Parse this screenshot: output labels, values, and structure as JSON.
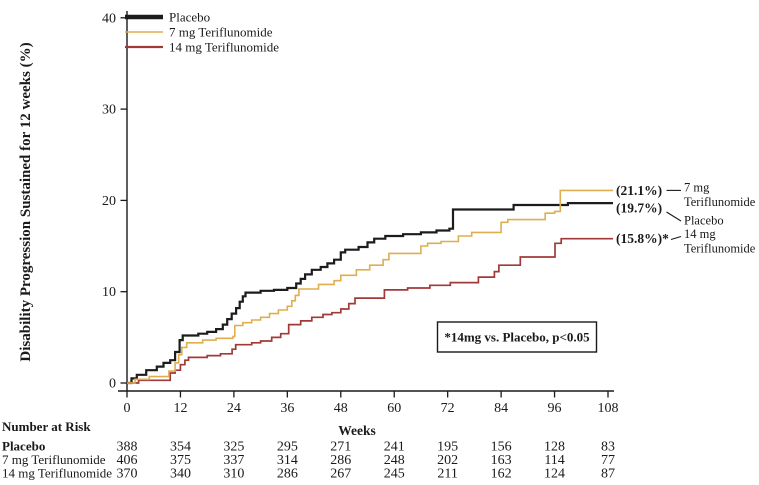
{
  "chart_data": {
    "type": "line",
    "subtype": "kaplan-meier-step",
    "title": "",
    "xlabel": "Weeks",
    "ylabel": "Disability Progression Sustained for 12 weeks (%)",
    "xlim": [
      0,
      108
    ],
    "ylim": [
      0,
      40
    ],
    "x_ticks": [
      0,
      12,
      24,
      36,
      48,
      60,
      72,
      84,
      96,
      108
    ],
    "y_ticks": [
      0,
      10,
      20,
      30,
      40
    ],
    "grid": false,
    "legend_position": "top-left",
    "annotation": "*14mg vs. Placebo, p<0.05",
    "axis_color": "#1a1a1a",
    "series": [
      {
        "name": "Placebo",
        "color": "#1c1c1c",
        "final_pct": 19.7,
        "final_label": "(19.7%)",
        "steps": [
          [
            0,
            0
          ],
          [
            1,
            0.5
          ],
          [
            2.2,
            0.9
          ],
          [
            4.3,
            1.4
          ],
          [
            6.7,
            1.8
          ],
          [
            8.2,
            2.2
          ],
          [
            9.7,
            2.5
          ],
          [
            10.8,
            3.4
          ],
          [
            11.8,
            4.7
          ],
          [
            12.5,
            5.2
          ],
          [
            16,
            5.4
          ],
          [
            18,
            5.6
          ],
          [
            20,
            5.9
          ],
          [
            21.5,
            6.4
          ],
          [
            22.5,
            7.0
          ],
          [
            23.5,
            7.6
          ],
          [
            24.5,
            8.2
          ],
          [
            25.3,
            8.9
          ],
          [
            26,
            9.5
          ],
          [
            26.6,
            9.9
          ],
          [
            30,
            10.1
          ],
          [
            33,
            10.2
          ],
          [
            36,
            10.4
          ],
          [
            38,
            10.9
          ],
          [
            39,
            11.4
          ],
          [
            40,
            11.9
          ],
          [
            41.5,
            12.4
          ],
          [
            43.5,
            12.7
          ],
          [
            45,
            13.1
          ],
          [
            46.5,
            13.5
          ],
          [
            48,
            14.3
          ],
          [
            49,
            14.6
          ],
          [
            52,
            14.9
          ],
          [
            54,
            15.4
          ],
          [
            55.5,
            15.8
          ],
          [
            58,
            16.1
          ],
          [
            62,
            16.3
          ],
          [
            66,
            16.5
          ],
          [
            69.5,
            16.7
          ],
          [
            72.4,
            16.9
          ],
          [
            73.2,
            19.0
          ],
          [
            86.8,
            19.5
          ],
          [
            99,
            19.7
          ]
        ]
      },
      {
        "name": "7 mg Teriflunomide",
        "color": "#dfae4f",
        "final_pct": 21.1,
        "final_label": "(21.1%)",
        "steps": [
          [
            0,
            0
          ],
          [
            1.8,
            0.4
          ],
          [
            5,
            0.7
          ],
          [
            9.4,
            1.3
          ],
          [
            10.8,
            2.2
          ],
          [
            11.6,
            3.1
          ],
          [
            12.3,
            3.9
          ],
          [
            13.4,
            4.4
          ],
          [
            17,
            4.7
          ],
          [
            20,
            4.9
          ],
          [
            23.8,
            5.1
          ],
          [
            24.2,
            6.3
          ],
          [
            26,
            6.6
          ],
          [
            28,
            6.9
          ],
          [
            30,
            7.2
          ],
          [
            32,
            7.6
          ],
          [
            34,
            8.0
          ],
          [
            36,
            8.4
          ],
          [
            37,
            9.0
          ],
          [
            37.8,
            9.6
          ],
          [
            38.6,
            10.3
          ],
          [
            43,
            10.8
          ],
          [
            46.5,
            11.2
          ],
          [
            48,
            11.8
          ],
          [
            51.5,
            12.4
          ],
          [
            54.5,
            12.9
          ],
          [
            57.5,
            13.5
          ],
          [
            58.8,
            14.2
          ],
          [
            66,
            15.0
          ],
          [
            67.5,
            15.3
          ],
          [
            70.5,
            15.5
          ],
          [
            74.4,
            16.1
          ],
          [
            77.4,
            16.5
          ],
          [
            84,
            17.6
          ],
          [
            85.5,
            17.9
          ],
          [
            93.9,
            18.6
          ],
          [
            96,
            18.8
          ],
          [
            97.3,
            21.1
          ]
        ]
      },
      {
        "name": "14 mg Teriflunomide",
        "color": "#a03a38",
        "final_pct": 15.8,
        "final_label": "(15.8%)*",
        "steps": [
          [
            0,
            0
          ],
          [
            2.6,
            0.3
          ],
          [
            9.7,
            1.1
          ],
          [
            10.8,
            1.4
          ],
          [
            12,
            2.0
          ],
          [
            13,
            2.5
          ],
          [
            13.8,
            2.8
          ],
          [
            18,
            3.0
          ],
          [
            21,
            3.2
          ],
          [
            23.6,
            3.7
          ],
          [
            24.4,
            4.2
          ],
          [
            28,
            4.4
          ],
          [
            30,
            4.6
          ],
          [
            32.5,
            5.0
          ],
          [
            34.5,
            5.4
          ],
          [
            36.3,
            6.4
          ],
          [
            39,
            6.8
          ],
          [
            41.5,
            7.2
          ],
          [
            44,
            7.5
          ],
          [
            46,
            7.7
          ],
          [
            48,
            8.1
          ],
          [
            49.8,
            8.7
          ],
          [
            51.2,
            9.3
          ],
          [
            57.8,
            10.2
          ],
          [
            63,
            10.4
          ],
          [
            68,
            10.7
          ],
          [
            72.6,
            11.0
          ],
          [
            78.9,
            11.6
          ],
          [
            82.5,
            12.2
          ],
          [
            83.5,
            12.9
          ],
          [
            88.3,
            13.8
          ],
          [
            96.1,
            15.3
          ],
          [
            97.5,
            15.8
          ]
        ]
      }
    ],
    "end_labels": [
      {
        "pct": "(21.1%)",
        "lines": [
          "7 mg",
          "Teriflunomide"
        ]
      },
      {
        "pct": "(19.7%)",
        "lines": [
          "Placebo"
        ]
      },
      {
        "pct": "(15.8%)*",
        "lines": [
          "14 mg",
          "Teriflunomide"
        ]
      }
    ]
  },
  "risk_table": {
    "title": "Number at Risk",
    "weeks": [
      0,
      12,
      24,
      36,
      48,
      60,
      72,
      84,
      96,
      108
    ],
    "rows": [
      {
        "label": "Placebo",
        "bold": true,
        "values": [
          388,
          354,
          325,
          295,
          271,
          241,
          195,
          156,
          128,
          83
        ]
      },
      {
        "label": "7 mg Teriflunomide",
        "bold": false,
        "values": [
          406,
          375,
          337,
          314,
          286,
          248,
          202,
          163,
          114,
          77
        ]
      },
      {
        "label": "14 mg Teriflunomide",
        "bold": false,
        "values": [
          370,
          340,
          310,
          286,
          267,
          245,
          211,
          162,
          124,
          87
        ]
      }
    ]
  }
}
